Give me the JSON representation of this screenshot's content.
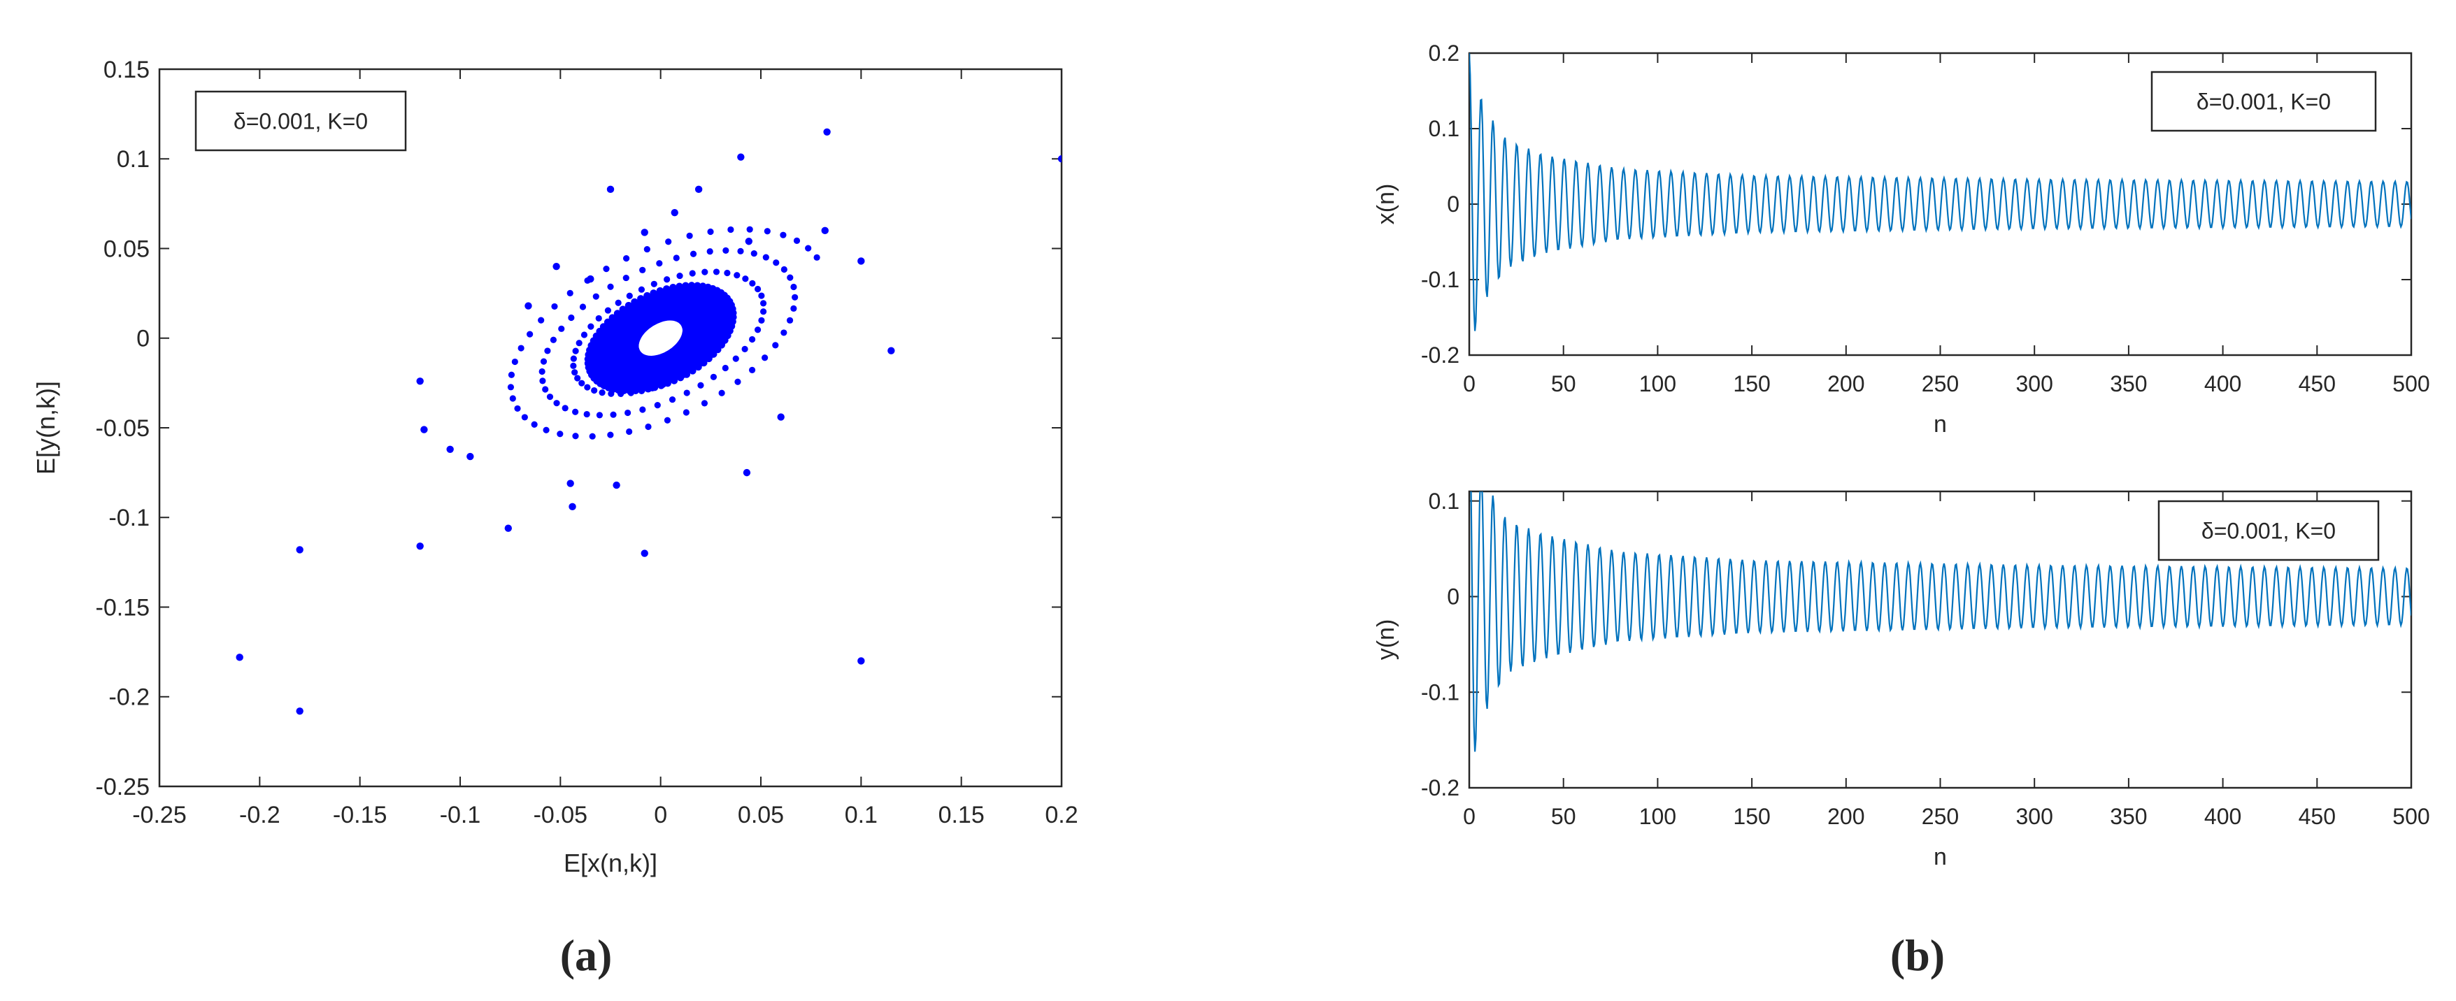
{
  "panel_labels": {
    "a": "(a)",
    "b": "(b)"
  },
  "chart_data": [
    {
      "type": "scatter",
      "title": "",
      "xlabel": "E[x(n,k)]",
      "ylabel": "E[y(n,k)]",
      "xlim": [
        -0.25,
        0.2
      ],
      "ylim": [
        -0.25,
        0.15
      ],
      "xticks": [
        -0.25,
        -0.2,
        -0.15,
        -0.1,
        -0.05,
        0,
        0.05,
        0.1,
        0.15,
        0.2
      ],
      "xtick_labels": [
        "-0.25",
        "-0.2",
        "-0.15",
        "-0.1",
        "-0.05",
        "0",
        "0.05",
        "0.1",
        "0.15",
        "0.2"
      ],
      "yticks": [
        -0.25,
        -0.2,
        -0.15,
        -0.1,
        -0.05,
        0,
        0.05,
        0.1,
        0.15
      ],
      "ytick_labels": [
        "-0.25",
        "-0.2",
        "-0.15",
        "-0.1",
        "-0.05",
        "0",
        "0.05",
        "0.1",
        "0.15"
      ],
      "grid": false,
      "legend": {
        "text": "δ=0.001, K=0",
        "placement": "top-left"
      },
      "color": "#0000ff",
      "series": [
        {
          "points": [
            [
              0.2,
              0.1
            ],
            [
              -0.21,
              -0.178
            ],
            [
              -0.18,
              -0.208
            ],
            [
              -0.18,
              -0.118
            ],
            [
              0.1,
              -0.18
            ],
            [
              -0.12,
              -0.116
            ],
            [
              -0.12,
              -0.024
            ],
            [
              0.115,
              -0.007
            ],
            [
              0.083,
              0.115
            ],
            [
              0.04,
              0.101
            ],
            [
              -0.025,
              0.083
            ],
            [
              -0.118,
              -0.051
            ],
            [
              -0.076,
              -0.106
            ],
            [
              -0.008,
              -0.12
            ],
            [
              0.1,
              0.043
            ],
            [
              -0.044,
              -0.094
            ],
            [
              0.043,
              -0.075
            ],
            [
              0.06,
              -0.044
            ],
            [
              -0.052,
              0.04
            ],
            [
              -0.008,
              0.059
            ],
            [
              0.007,
              0.07
            ],
            [
              0.019,
              0.083
            ],
            [
              -0.066,
              0.018
            ],
            [
              -0.045,
              -0.081
            ],
            [
              0.082,
              0.06
            ],
            [
              -0.035,
              0.033
            ],
            [
              0.044,
              0.054
            ],
            [
              -0.095,
              -0.066
            ],
            [
              -0.105,
              -0.062
            ],
            [
              -0.022,
              -0.082
            ]
          ]
        }
      ],
      "spiral": {
        "turns": 3.2,
        "r_start": 0.09,
        "r_end": 0.035,
        "tilt_deg": 30,
        "aspect": 0.55
      },
      "orbit_ring": {
        "center": [
          0.0,
          0.0
        ],
        "rx": 0.04,
        "ry": 0.024,
        "tilt_deg": 32,
        "inner_hole": [
          0.012,
          0.008
        ]
      }
    },
    {
      "type": "line",
      "title": "",
      "xlabel": "n",
      "ylabel": "x(n)",
      "xlim": [
        0,
        500
      ],
      "ylim": [
        -0.2,
        0.2
      ],
      "xticks": [
        0,
        50,
        100,
        150,
        200,
        250,
        300,
        350,
        400,
        450,
        500
      ],
      "xtick_labels": [
        "0",
        "50",
        "100",
        "150",
        "200",
        "250",
        "300",
        "350",
        "400",
        "450",
        "500"
      ],
      "yticks": [
        -0.2,
        -0.1,
        0,
        0.1,
        0.2
      ],
      "ytick_labels": [
        "-0.2",
        "-0.1",
        "0",
        "0.1",
        "0.2"
      ],
      "grid": false,
      "legend": {
        "text": "δ=0.001, K=0",
        "placement": "top-right"
      },
      "color": "#0072bd",
      "series": [
        {
          "envelope": {
            "n": [
              0,
              5,
              10,
              20,
              40,
              80,
              150,
              300,
              500
            ],
            "amp": [
              0.2,
              0.15,
              0.12,
              0.085,
              0.065,
              0.047,
              0.038,
              0.033,
              0.03
            ]
          },
          "period": 6.3
        }
      ]
    },
    {
      "type": "line",
      "title": "",
      "xlabel": "n",
      "ylabel": "y(n)",
      "xlim": [
        0,
        500
      ],
      "ylim": [
        -0.2,
        0.11
      ],
      "xticks": [
        0,
        50,
        100,
        150,
        200,
        250,
        300,
        350,
        400,
        450,
        500
      ],
      "xtick_labels": [
        "0",
        "50",
        "100",
        "150",
        "200",
        "250",
        "300",
        "350",
        "400",
        "450",
        "500"
      ],
      "yticks": [
        -0.2,
        -0.1,
        0,
        0.1
      ],
      "ytick_labels": [
        "-0.2",
        "-0.1",
        "0",
        "0.1"
      ],
      "grid": false,
      "legend": {
        "text": "δ=0.001, K=0",
        "placement": "top-right"
      },
      "color": "#0072bd",
      "series": [
        {
          "envelope": {
            "n": [
              0,
              5,
              10,
              20,
              40,
              80,
              150,
              300,
              500
            ],
            "amp": [
              0.2,
              0.14,
              0.115,
              0.08,
              0.065,
              0.047,
              0.038,
              0.033,
              0.03
            ]
          },
          "period": 6.3
        }
      ]
    }
  ]
}
